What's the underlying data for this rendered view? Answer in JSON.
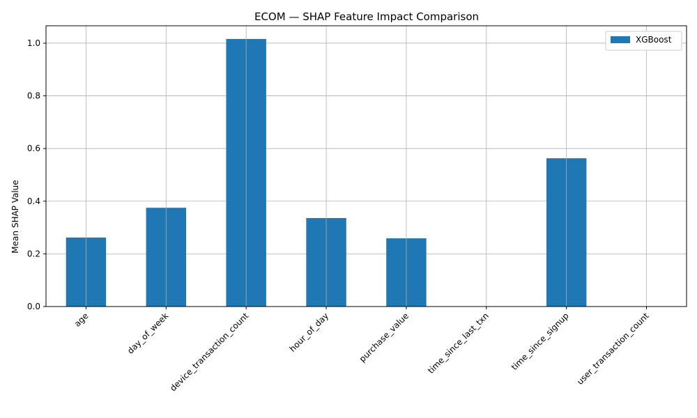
{
  "chart_data": {
    "type": "bar",
    "title": "ECOM — SHAP Feature Impact Comparison",
    "xlabel": "",
    "ylabel": "Mean SHAP Value",
    "categories": [
      "age",
      "day_of_week",
      "device_transaction_count",
      "hour_of_day",
      "purchase_value",
      "time_since_last_txn",
      "time_since_signup",
      "user_transaction_count"
    ],
    "series": [
      {
        "name": "XGBoost",
        "values": [
          0.262,
          0.375,
          1.016,
          0.336,
          0.259,
          0.0,
          0.563,
          0.0
        ],
        "color": "#1f77b4"
      }
    ],
    "ylim": [
      0,
      1.066
    ],
    "yticks": [
      "0.0",
      "0.2",
      "0.4",
      "0.6",
      "0.8",
      "1.0"
    ],
    "grid": true,
    "legend_position": "top-right"
  }
}
